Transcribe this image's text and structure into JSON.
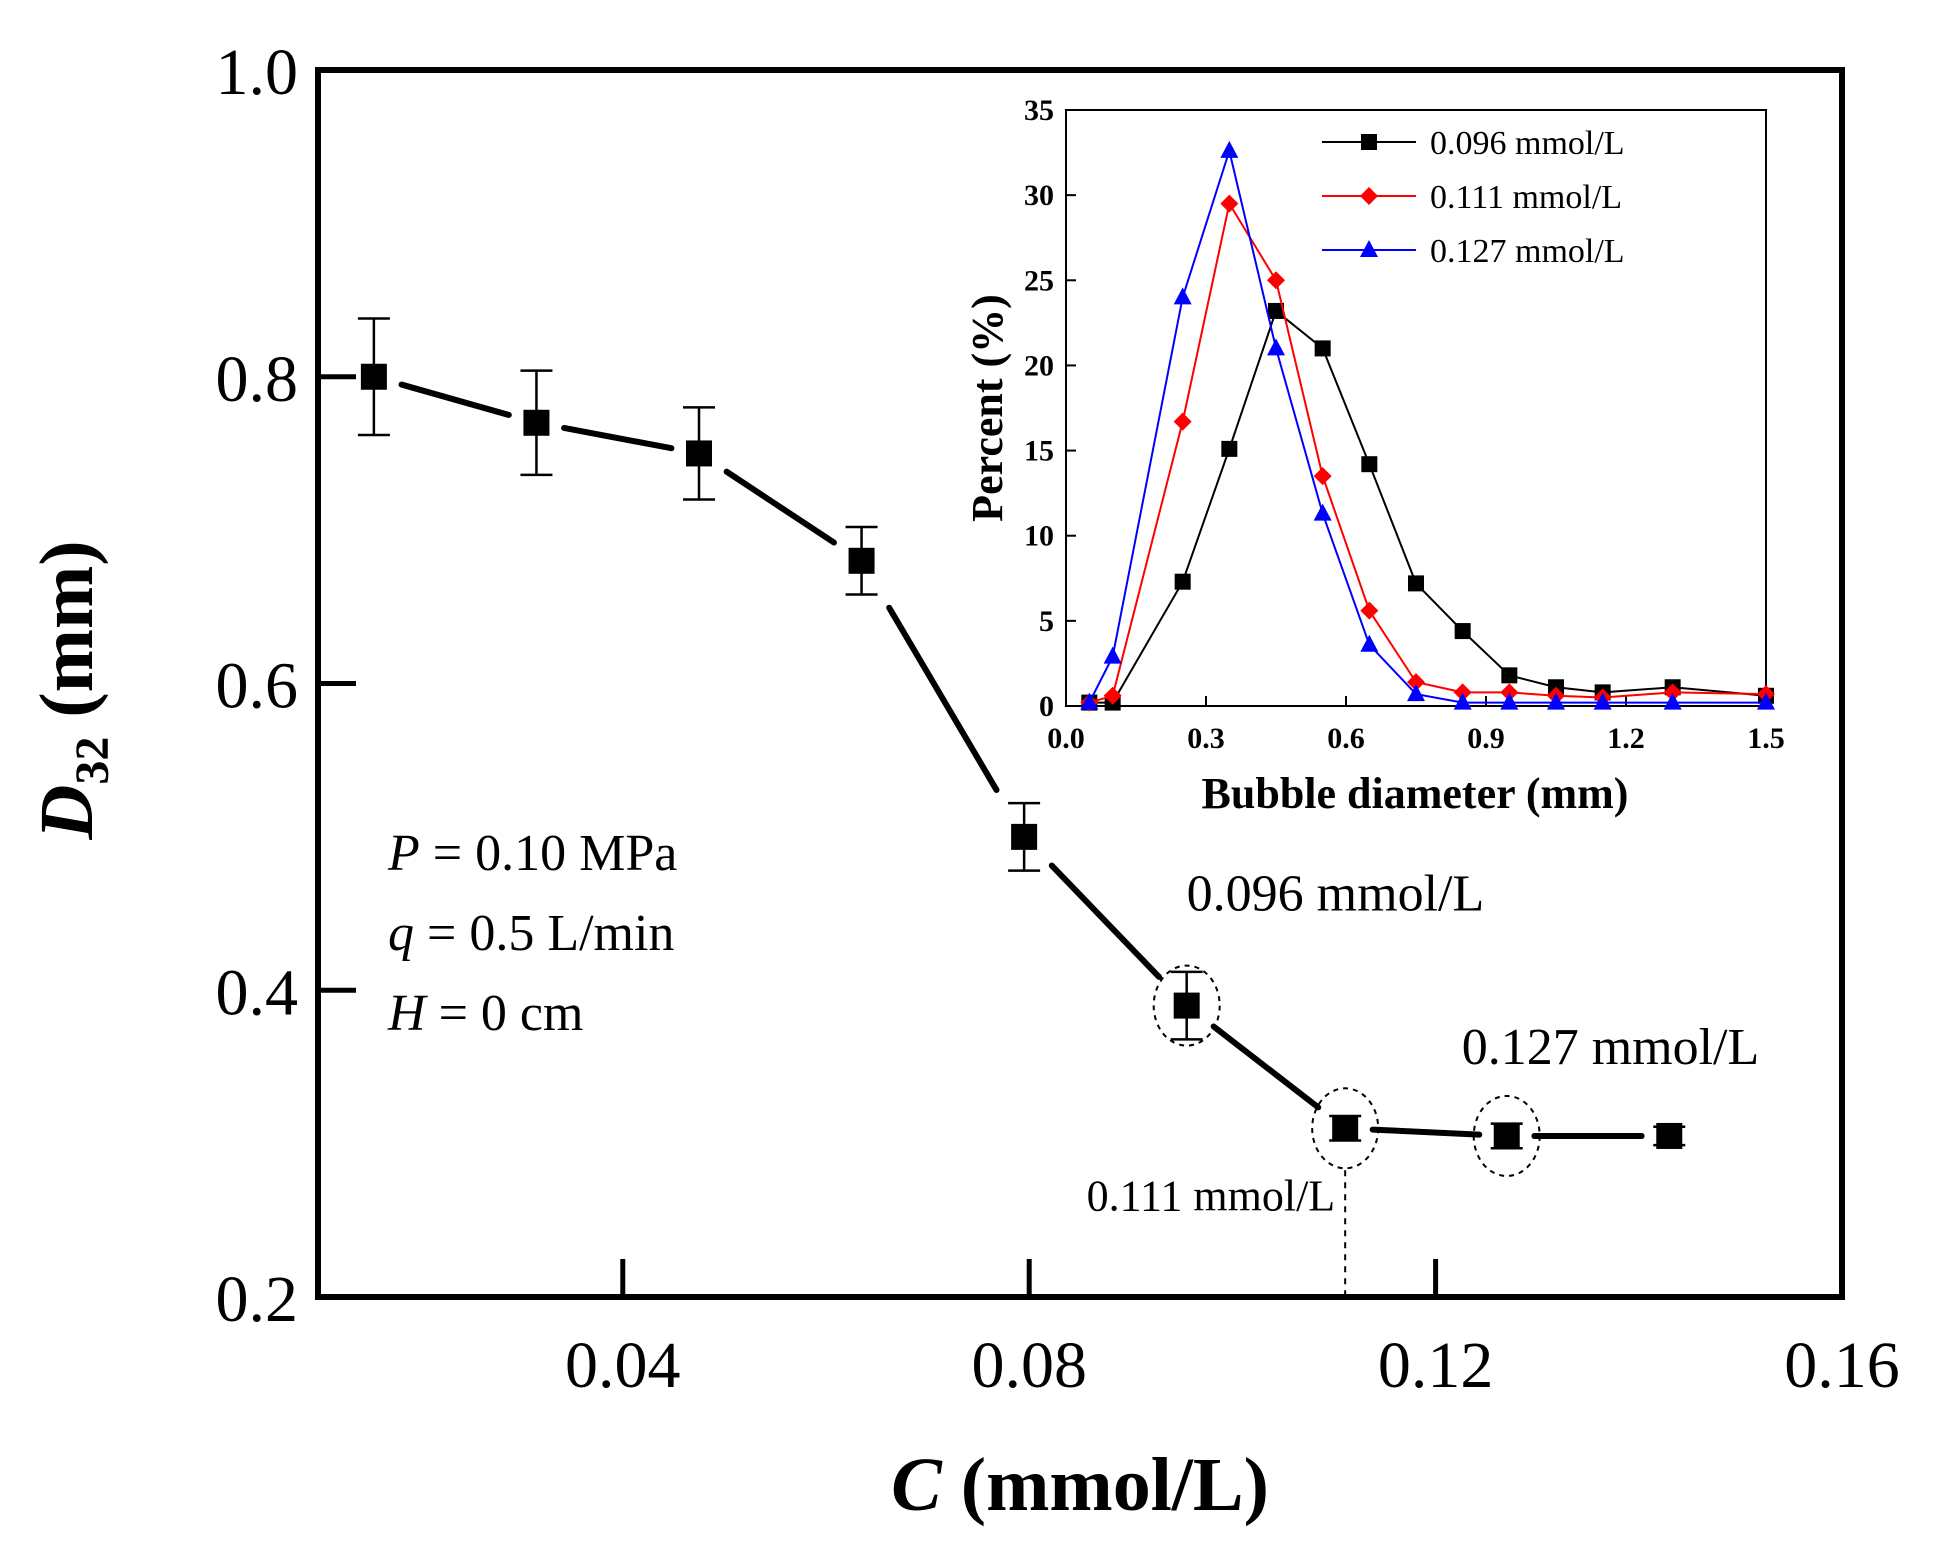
{
  "chart_data": [
    {
      "type": "line",
      "title": "",
      "xlabel": {
        "symbol": "C",
        "unit": " (mmol/L)"
      },
      "ylabel": {
        "symbol": "D",
        "subscript": "32",
        "unit": " (mm)"
      },
      "xlim": [
        0.01,
        0.16
      ],
      "ylim": [
        0.2,
        1.0
      ],
      "xticks": [
        0.04,
        0.08,
        0.12,
        0.16
      ],
      "xtick_labels": [
        "0.04",
        "0.08",
        "0.12",
        "0.16"
      ],
      "yticks": [
        0.2,
        0.4,
        0.6,
        0.8,
        1.0
      ],
      "ytick_labels": [
        "0.2",
        "0.4",
        "0.6",
        "0.8",
        "1.0"
      ],
      "series": [
        {
          "name": "D32",
          "color": "#000000",
          "marker": "square",
          "line": "dashed",
          "x": [
            0.0155,
            0.0315,
            0.0475,
            0.0635,
            0.0795,
            0.0955,
            0.1111,
            0.127,
            0.143
          ],
          "y": [
            0.8,
            0.77,
            0.75,
            0.68,
            0.5,
            0.39,
            0.31,
            0.305,
            0.305
          ],
          "error": [
            0.038,
            0.034,
            0.03,
            0.022,
            0.022,
            0.022,
            0.008,
            0.008,
            0.006
          ]
        }
      ],
      "conditions": [
        {
          "symbol": "P",
          "value": " = 0.10 MPa"
        },
        {
          "symbol": "q",
          "value": " = 0.5 L/min"
        },
        {
          "symbol": "H",
          "value": " = 0 cm"
        }
      ],
      "annotations": [
        {
          "label": "0.096 mmol/L",
          "x": 0.0955,
          "y": 0.39
        },
        {
          "label": "0.111 mmol/L",
          "x": 0.1111,
          "y": 0.31
        },
        {
          "label": "0.127 mmol/L",
          "x": 0.127,
          "y": 0.305
        }
      ]
    },
    {
      "type": "line",
      "title": "",
      "xlabel": "Bubble diameter (mm)",
      "ylabel": "Percent (%)",
      "xlim": [
        0.0,
        1.5
      ],
      "ylim": [
        0,
        35
      ],
      "xticks": [
        0.0,
        0.3,
        0.6,
        0.9,
        1.2,
        1.5
      ],
      "xtick_labels": [
        "0.0",
        "0.3",
        "0.6",
        "0.9",
        "1.2",
        "1.5"
      ],
      "yticks": [
        0,
        5,
        10,
        15,
        20,
        25,
        30,
        35
      ],
      "ytick_labels": [
        "0",
        "5",
        "10",
        "15",
        "20",
        "25",
        "30",
        "35"
      ],
      "legend_position": "top-right",
      "series": [
        {
          "name": "0.096 mmol/L",
          "color": "#000000",
          "marker": "square",
          "x": [
            0.05,
            0.1,
            0.25,
            0.35,
            0.45,
            0.55,
            0.65,
            0.75,
            0.85,
            0.95,
            1.05,
            1.15,
            1.3,
            1.5
          ],
          "y": [
            0.2,
            0.2,
            7.3,
            15.1,
            23.2,
            21.0,
            14.2,
            7.2,
            4.4,
            1.8,
            1.1,
            0.8,
            1.1,
            0.6
          ]
        },
        {
          "name": "0.111 mmol/L",
          "color": "#ff0000",
          "marker": "diamond",
          "x": [
            0.05,
            0.1,
            0.25,
            0.35,
            0.45,
            0.55,
            0.65,
            0.75,
            0.85,
            0.95,
            1.05,
            1.15,
            1.3,
            1.5
          ],
          "y": [
            0.2,
            0.6,
            16.7,
            29.5,
            25.0,
            13.5,
            5.6,
            1.4,
            0.8,
            0.8,
            0.6,
            0.5,
            0.8,
            0.7
          ]
        },
        {
          "name": "0.127 mmol/L",
          "color": "#0000ff",
          "marker": "triangle",
          "x": [
            0.05,
            0.1,
            0.25,
            0.35,
            0.45,
            0.55,
            0.65,
            0.75,
            0.85,
            0.95,
            1.05,
            1.15,
            1.3,
            1.5
          ],
          "y": [
            0.2,
            2.9,
            24.0,
            32.6,
            21.0,
            11.3,
            3.6,
            0.7,
            0.2,
            0.2,
            0.2,
            0.2,
            0.2,
            0.2
          ]
        }
      ]
    }
  ]
}
